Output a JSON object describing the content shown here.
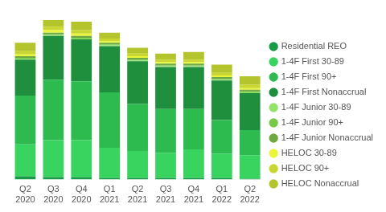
{
  "chart_data": {
    "type": "bar",
    "stacked": true,
    "grid": false,
    "legend": "right",
    "tick_labels": "x",
    "categories": [
      "Q2 2020",
      "Q3 2020",
      "Q4 2020",
      "Q1 2021",
      "Q2 2021",
      "Q3 2021",
      "Q4 2021",
      "Q1 2022",
      "Q2 2022"
    ],
    "ylim": [
      0,
      190
    ],
    "series": [
      {
        "name": "Residential REO",
        "color": "#169b46",
        "values": [
          4,
          3,
          3,
          2,
          2,
          2,
          2,
          2,
          1
        ]
      },
      {
        "name": "1-4F First 30-89",
        "color": "#39d35f",
        "values": [
          38,
          44,
          44,
          36,
          32,
          30,
          34,
          29,
          28
        ]
      },
      {
        "name": "1-4F First 90+",
        "color": "#2dbb50",
        "values": [
          58,
          72,
          70,
          66,
          56,
          52,
          48,
          40,
          30
        ]
      },
      {
        "name": "1-4F First Nonaccrual",
        "color": "#1f8e3d",
        "values": [
          43,
          52,
          50,
          55,
          51,
          50,
          50,
          47,
          44
        ]
      },
      {
        "name": "1-4F Junior 30-89",
        "color": "#93e36b",
        "values": [
          1,
          1,
          1,
          1,
          1,
          1,
          1,
          1,
          1
        ]
      },
      {
        "name": "1-4F Junior 90+",
        "color": "#78c84a",
        "values": [
          1,
          1,
          1,
          1,
          1,
          1,
          1,
          1,
          1
        ]
      },
      {
        "name": "1-4F Junior Nonaccrual",
        "color": "#6ea843",
        "values": [
          2,
          2,
          2,
          2,
          2,
          2,
          2,
          2,
          2
        ]
      },
      {
        "name": "HELOC 30-89",
        "color": "#e8f53a",
        "values": [
          2,
          3,
          3,
          2,
          2,
          2,
          2,
          2,
          2
        ]
      },
      {
        "name": "HELOC 90+",
        "color": "#c9d62f",
        "values": [
          4,
          4,
          4,
          3,
          3,
          3,
          3,
          3,
          4
        ]
      },
      {
        "name": "HELOC Nonaccrual",
        "color": "#b3c42c",
        "values": [
          10,
          8,
          10,
          7,
          7,
          7,
          9,
          10,
          10
        ]
      }
    ]
  }
}
